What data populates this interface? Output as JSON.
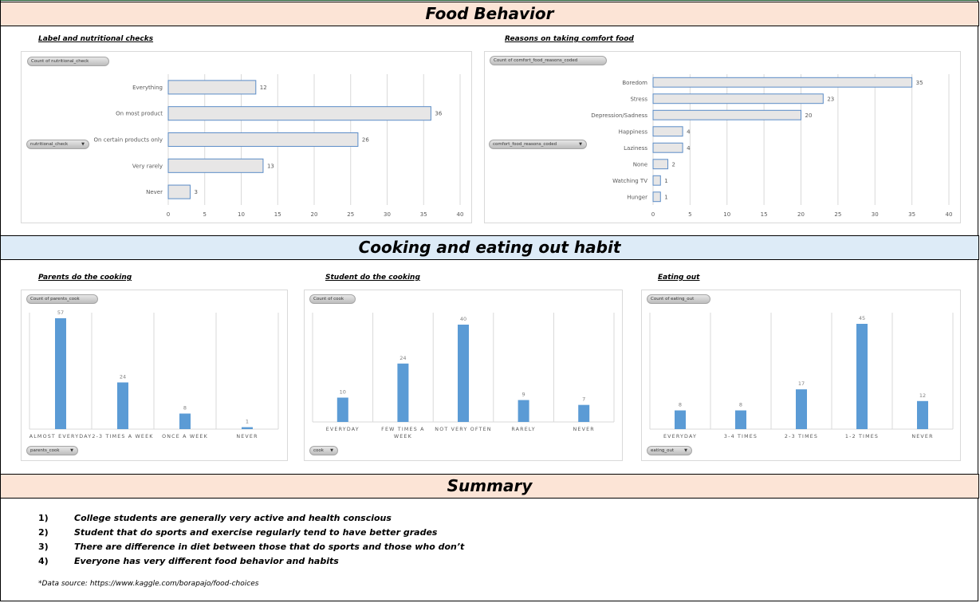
{
  "sections": {
    "food_behavior": "Food Behavior",
    "cooking": "Cooking and eating out habit",
    "summary": "Summary"
  },
  "colors": {
    "peach_band": "#fce4d6",
    "blue_band": "#ddebf7",
    "hbar_fill": "#e7e6e6",
    "hbar_border": "#5b8cc7",
    "vbar_fill": "#5b9bd5"
  },
  "chart_data": [
    {
      "id": "nutritional",
      "type": "bar",
      "orientation": "horizontal",
      "title": "Label and nutritional checks",
      "value_field_button": "Count of nutritional_check",
      "axis_field_button": "nutritional_check",
      "categories": [
        "Everything",
        "On most product",
        "On certain products only",
        "Very rarely",
        "Never"
      ],
      "values": [
        12,
        36,
        26,
        13,
        3
      ],
      "xlim": [
        0,
        40
      ],
      "ticks": [
        "0",
        "5",
        "10",
        "15",
        "20",
        "25",
        "30",
        "35",
        "40"
      ],
      "grid": true
    },
    {
      "id": "comfort",
      "type": "bar",
      "orientation": "horizontal",
      "title": "Reasons on taking comfort food",
      "value_field_button": "Count of comfort_food_reasons_coded",
      "axis_field_button": "comfort_food_reasons_coded",
      "categories": [
        "Boredom",
        "Stress",
        "Depression/Sadness",
        "Happiness",
        "Laziness",
        "None",
        "Watching TV",
        "Hunger"
      ],
      "values": [
        35,
        23,
        20,
        4,
        4,
        2,
        1,
        1
      ],
      "xlim": [
        0,
        40
      ],
      "ticks": [
        "0",
        "5",
        "10",
        "15",
        "20",
        "25",
        "30",
        "35",
        "40"
      ],
      "grid": true
    },
    {
      "id": "parents",
      "type": "bar",
      "orientation": "vertical",
      "title": "Parents do the cooking",
      "value_field_button": "Count of parents_cook",
      "axis_field_button": "parents_cook",
      "categories": [
        "ALMOST EVERYDAY",
        "2-3 TIMES A WEEK",
        "ONCE A WEEK",
        "NEVER"
      ],
      "values": [
        57,
        24,
        8,
        1
      ],
      "ylim": [
        0,
        57
      ],
      "grid": true
    },
    {
      "id": "student",
      "type": "bar",
      "orientation": "vertical",
      "title": "Student do the cooking",
      "value_field_button": "Count of cook",
      "axis_field_button": "cook",
      "categories": [
        "EVERYDAY",
        "FEW TIMES A WEEK",
        "NOT VERY OFTEN",
        "RARELY",
        "NEVER"
      ],
      "values": [
        10,
        24,
        40,
        9,
        7
      ],
      "ylim": [
        0,
        40
      ],
      "grid": true
    },
    {
      "id": "eating",
      "type": "bar",
      "orientation": "vertical",
      "title": "Eating out",
      "value_field_button": "Count of eating_out",
      "axis_field_button": "eating_out",
      "categories": [
        "EVERYDAY",
        "3-4 TIMES",
        "2-3 TIMES",
        "1-2 TIMES",
        "NEVER"
      ],
      "values": [
        8,
        8,
        17,
        45,
        12
      ],
      "ylim": [
        0,
        45
      ],
      "grid": true
    }
  ],
  "summary": {
    "items": [
      {
        "num": "1)",
        "text": "College students are generally very active and health conscious"
      },
      {
        "num": "2)",
        "text": "Student that do sports and exercise regularly tend to have better grades"
      },
      {
        "num": "3)",
        "text": "There are difference in diet between those that do sports and those who don’t"
      },
      {
        "num": "4)",
        "text": "Everyone has very different food behavior and habits"
      }
    ],
    "source": "*Data source: https://www.kaggle.com/borapajo/food-choices"
  }
}
